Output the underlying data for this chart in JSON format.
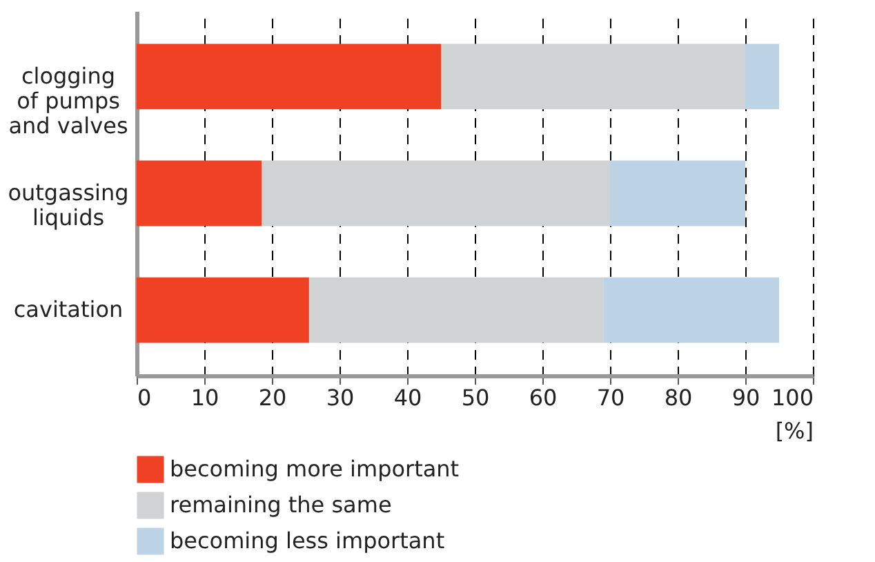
{
  "chart_data": {
    "type": "bar",
    "orientation": "horizontal",
    "stacked": true,
    "categories": [
      "clogging\nof pumps\nand valves",
      "outgassing\nliquids",
      "cavitation"
    ],
    "series": [
      {
        "name": "becoming more important",
        "color": "#f04124",
        "values": [
          45,
          18.5,
          25.5
        ]
      },
      {
        "name": "remaining the same",
        "color": "#d1d2d4",
        "values": [
          45,
          51.5,
          43.5
        ]
      },
      {
        "name": "becoming less important",
        "color": "#bdd4e7",
        "values": [
          5,
          20,
          26
        ]
      }
    ],
    "xlabel": "[%]",
    "xlim": [
      0,
      100
    ],
    "xticks": [
      0,
      10,
      20,
      30,
      40,
      50,
      60,
      70,
      80,
      90,
      100
    ],
    "grid": "x",
    "legend": "bottom"
  }
}
